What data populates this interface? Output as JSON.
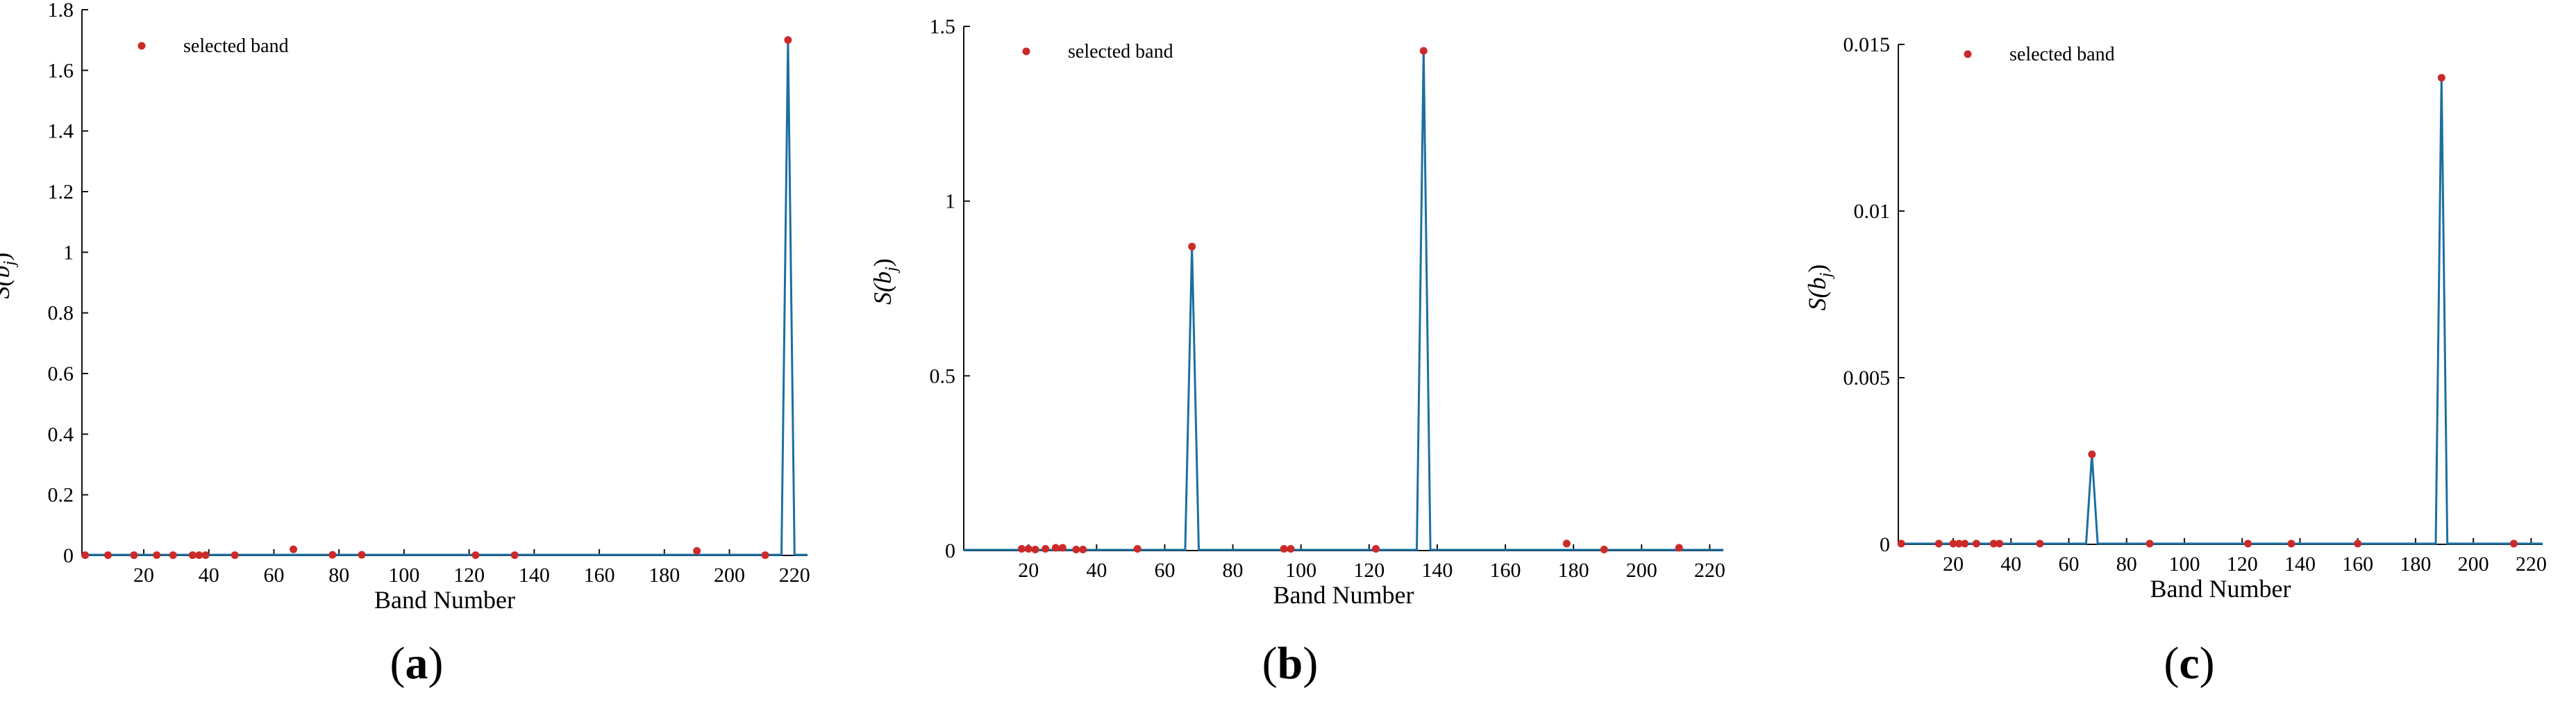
{
  "panels": [
    {
      "caption": "a",
      "chart_data": {
        "type": "line",
        "xlabel": "Band Number",
        "ylabel": "S(b",
        "ylabel_sub": "j",
        "xlim": [
          1,
          224
        ],
        "ylim": [
          0,
          1.8
        ],
        "xticks": [
          20,
          40,
          60,
          80,
          100,
          120,
          140,
          160,
          180,
          200,
          220
        ],
        "yticks": [
          0,
          0.2,
          0.4,
          0.6,
          0.8,
          1,
          1.2,
          1.4,
          1.6,
          1.8
        ],
        "ytick_labels": [
          "0",
          "0.2",
          "0.4",
          "0.6",
          "0.8",
          "1",
          "1.2",
          "1.4",
          "1.6",
          "1.8"
        ],
        "legend": {
          "label": "selected band",
          "position": "top-left"
        },
        "line": {
          "x": [
            1,
            216,
            218,
            220,
            224
          ],
          "y": [
            0.002,
            0.002,
            1.7,
            0.002,
            0.002
          ]
        },
        "selected_bands": {
          "x": [
            2,
            9,
            17,
            24,
            29,
            35,
            37,
            39,
            48,
            66,
            78,
            87,
            122,
            134,
            190,
            211,
            218
          ],
          "y": [
            0.001,
            0.001,
            0.001,
            0.001,
            0.001,
            0.001,
            0.001,
            0.001,
            0.001,
            0.02,
            0.002,
            0.002,
            0.001,
            0.001,
            0.015,
            0.001,
            1.7
          ]
        }
      }
    },
    {
      "caption": "b",
      "chart_data": {
        "type": "line",
        "xlabel": "Band Number",
        "ylabel": "S(b",
        "ylabel_sub": "j",
        "xlim": [
          1,
          224
        ],
        "ylim": [
          0,
          1.5
        ],
        "xticks": [
          20,
          40,
          60,
          80,
          100,
          120,
          140,
          160,
          180,
          200,
          220
        ],
        "yticks": [
          0,
          0.5,
          1,
          1.5
        ],
        "ytick_labels": [
          "0",
          "0.5",
          "1",
          "1.5"
        ],
        "legend": {
          "label": "selected band",
          "position": "top-left"
        },
        "line": {
          "x": [
            1,
            66,
            68,
            70,
            134,
            136,
            138,
            224
          ],
          "y": [
            0.002,
            0.002,
            0.87,
            0.002,
            0.002,
            1.43,
            0.002,
            0.002
          ]
        },
        "selected_bands": {
          "x": [
            18,
            20,
            22,
            25,
            28,
            30,
            34,
            36,
            52,
            68,
            95,
            97,
            122,
            136,
            178,
            189,
            211
          ],
          "y": [
            0.005,
            0.005,
            0.003,
            0.005,
            0.008,
            0.008,
            0.003,
            0.003,
            0.005,
            0.87,
            0.005,
            0.005,
            0.005,
            1.43,
            0.02,
            0.003,
            0.008
          ]
        }
      }
    },
    {
      "caption": "c",
      "chart_data": {
        "type": "line",
        "xlabel": "Band Number",
        "ylabel": "S(b",
        "ylabel_sub": "j",
        "xlim": [
          1,
          224
        ],
        "ylim": [
          0,
          0.015
        ],
        "xticks": [
          20,
          40,
          60,
          80,
          100,
          120,
          140,
          160,
          180,
          200,
          220
        ],
        "yticks": [
          0,
          0.005,
          0.01,
          0.015
        ],
        "ytick_labels": [
          "0",
          "0.005",
          "0.01",
          "0.015"
        ],
        "legend": {
          "label": "selected band",
          "position": "top-left"
        },
        "line": {
          "x": [
            1,
            66,
            68,
            70,
            187,
            189,
            191,
            224
          ],
          "y": [
            2e-05,
            2e-05,
            0.0027,
            2e-05,
            2e-05,
            0.014,
            2e-05,
            2e-05
          ]
        },
        "selected_bands": {
          "x": [
            2,
            15,
            20,
            22,
            24,
            28,
            34,
            36,
            50,
            68,
            88,
            122,
            137,
            160,
            189,
            214
          ],
          "y": [
            2e-05,
            2e-05,
            2e-05,
            2e-05,
            2e-05,
            2e-05,
            2e-05,
            2e-05,
            2e-05,
            0.0027,
            2e-05,
            2e-05,
            2e-05,
            2e-05,
            0.014,
            2e-05
          ]
        }
      }
    }
  ],
  "colors": {
    "line": "#1b6fa0",
    "marker": "#cc2a2a",
    "axis": "#111111",
    "text": "#000000"
  }
}
